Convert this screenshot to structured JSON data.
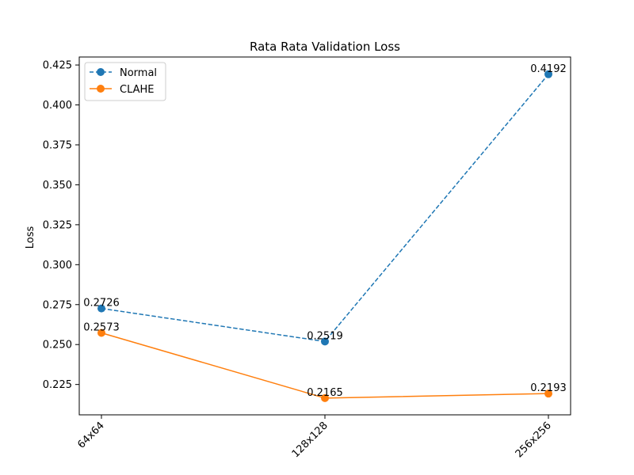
{
  "chart_data": {
    "type": "line",
    "title": "Rata Rata Validation Loss",
    "xlabel": "",
    "ylabel": "Loss",
    "categories": [
      "64x64",
      "128x128",
      "256x256"
    ],
    "ylim": [
      0.206,
      0.43
    ],
    "yticks": [
      "0.225",
      "0.250",
      "0.275",
      "0.300",
      "0.325",
      "0.350",
      "0.375",
      "0.400",
      "0.425"
    ],
    "grid": false,
    "legend_position": "top-left",
    "series": [
      {
        "name": "Normal",
        "values": [
          0.2726,
          0.2519,
          0.4192
        ],
        "labels": [
          "0.2726",
          "0.2519",
          "0.4192"
        ],
        "color": "#1f77b4",
        "linestyle": "dashed",
        "marker": "circle"
      },
      {
        "name": "CLAHE",
        "values": [
          0.2573,
          0.2165,
          0.2193
        ],
        "labels": [
          "0.2573",
          "0.2165",
          "0.2193"
        ],
        "color": "#ff7f0e",
        "linestyle": "solid",
        "marker": "circle"
      }
    ]
  }
}
